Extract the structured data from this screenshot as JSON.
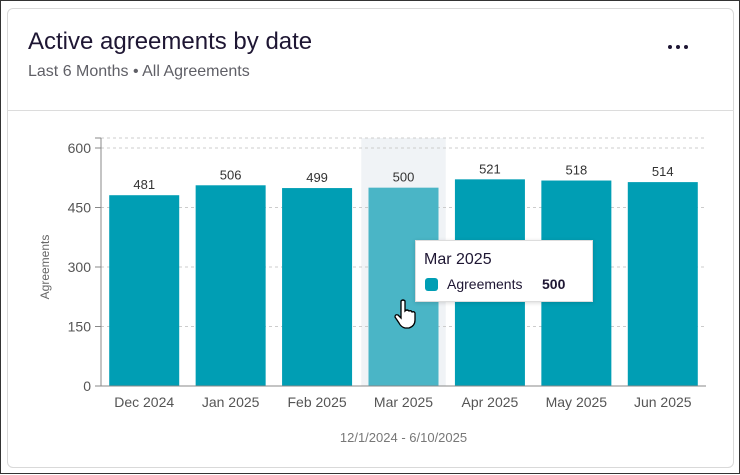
{
  "header": {
    "title": "Active agreements by date",
    "subtitle": "Last 6 Months • All Agreements",
    "menu_icon": "more-horizontal-icon"
  },
  "chart_data": {
    "type": "bar",
    "categories": [
      "Dec 2024",
      "Jan 2025",
      "Feb 2025",
      "Mar 2025",
      "Apr 2025",
      "May 2025",
      "Jun 2025"
    ],
    "values": [
      481,
      506,
      499,
      500,
      521,
      518,
      514
    ],
    "ylabel": "Agreements",
    "xlabel": "12/1/2024 - 6/10/2025",
    "ylim": [
      0,
      600
    ],
    "yticks": [
      0,
      150,
      300,
      450,
      600
    ],
    "grid": true,
    "highlighted": "Mar 2025",
    "colors": {
      "bar": "#009eb4",
      "highlight_bar": "#4ab5c6",
      "highlight_band": "#f0f3f6"
    }
  },
  "tooltip": {
    "title": "Mar 2025",
    "series": "Agreements",
    "value": "500"
  }
}
